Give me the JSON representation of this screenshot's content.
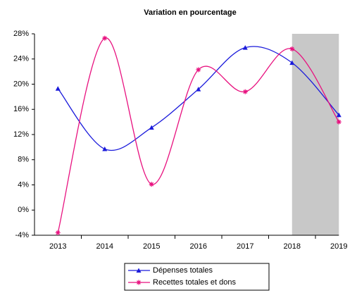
{
  "chart_data": {
    "type": "line",
    "title": "Variation en pourcentage",
    "categories": [
      "2013",
      "2014",
      "2015",
      "2016",
      "2017",
      "2018",
      "2019"
    ],
    "series": [
      {
        "name": "Dépenses totales",
        "color": "#1a1adb",
        "marker": "triangle",
        "values": [
          19.3,
          9.7,
          13.1,
          19.2,
          25.8,
          23.4,
          15.1
        ]
      },
      {
        "name": "Recettes totales et dons",
        "color": "#e8117f",
        "marker": "star",
        "values": [
          -3.6,
          27.3,
          4.1,
          22.3,
          18.8,
          25.6,
          14.0
        ]
      }
    ],
    "ylim": [
      -4,
      28
    ],
    "yticks": [
      {
        "value": -4,
        "label": "-4%"
      },
      {
        "value": 0,
        "label": "0%"
      },
      {
        "value": 4,
        "label": "4%"
      },
      {
        "value": 8,
        "label": "8%"
      },
      {
        "value": 12,
        "label": "12%"
      },
      {
        "value": 16,
        "label": "16%"
      },
      {
        "value": 20,
        "label": "20%"
      },
      {
        "value": 24,
        "label": "24%"
      },
      {
        "value": 28,
        "label": "28%"
      }
    ],
    "shaded_categories": [
      5,
      6
    ],
    "shade_color": "#c8c8c8",
    "smooth": true,
    "grid": false,
    "legend": "bottom"
  }
}
